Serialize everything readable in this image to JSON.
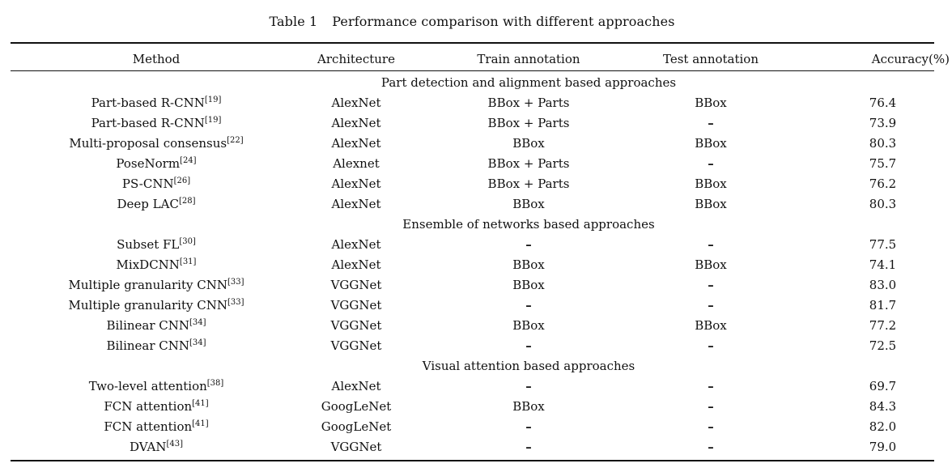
{
  "caption": {
    "label": "Table 1",
    "title": "Performance comparison with different approaches"
  },
  "headers": {
    "method": "Method",
    "architecture": "Architecture",
    "train": "Train annotation",
    "test": "Test annotation",
    "accuracy": "Accuracy(%)"
  },
  "sections": [
    {
      "title": "Part detection and alignment based approaches",
      "rows": [
        {
          "method": "Part-based R-CNN",
          "ref": "[19]",
          "arch": "AlexNet",
          "train": "BBox + Parts",
          "test": "BBox",
          "acc": "76.4"
        },
        {
          "method": "Part-based R-CNN",
          "ref": "[19]",
          "arch": "AlexNet",
          "train": "BBox + Parts",
          "test": "–",
          "acc": "73.9"
        },
        {
          "method": "Multi-proposal consensus",
          "ref": "[22]",
          "arch": "AlexNet",
          "train": "BBox",
          "test": "BBox",
          "acc": "80.3"
        },
        {
          "method": "PoseNorm",
          "ref": "[24]",
          "arch": "Alexnet",
          "train": "BBox + Parts",
          "test": "–",
          "acc": "75.7"
        },
        {
          "method": "PS-CNN",
          "ref": "[26]",
          "arch": "AlexNet",
          "train": "BBox + Parts",
          "test": "BBox",
          "acc": "76.2"
        },
        {
          "method": "Deep LAC",
          "ref": "[28]",
          "arch": "AlexNet",
          "train": "BBox",
          "test": "BBox",
          "acc": "80.3"
        }
      ]
    },
    {
      "title": "Ensemble of networks based approaches",
      "rows": [
        {
          "method": "Subset FL",
          "ref": "[30]",
          "arch": "AlexNet",
          "train": "–",
          "test": "–",
          "acc": "77.5"
        },
        {
          "method": "MixDCNN",
          "ref": "[31]",
          "arch": "AlexNet",
          "train": "BBox",
          "test": "BBox",
          "acc": "74.1"
        },
        {
          "method": "Multiple granularity CNN",
          "ref": "[33]",
          "arch": "VGGNet",
          "train": "BBox",
          "test": "–",
          "acc": "83.0"
        },
        {
          "method": "Multiple granularity CNN",
          "ref": "[33]",
          "arch": "VGGNet",
          "train": "–",
          "test": "–",
          "acc": "81.7"
        },
        {
          "method": "Bilinear CNN",
          "ref": "[34]",
          "arch": "VGGNet",
          "train": "BBox",
          "test": "BBox",
          "acc": "77.2"
        },
        {
          "method": "Bilinear CNN",
          "ref": "[34]",
          "arch": "VGGNet",
          "train": "–",
          "test": "–",
          "acc": "72.5"
        }
      ]
    },
    {
      "title": "Visual attention based approaches",
      "rows": [
        {
          "method": "Two-level attention",
          "ref": "[38]",
          "arch": "AlexNet",
          "train": "–",
          "test": "–",
          "acc": "69.7"
        },
        {
          "method": "FCN attention",
          "ref": "[41]",
          "arch": "GoogLeNet",
          "train": "BBox",
          "test": "–",
          "acc": "84.3"
        },
        {
          "method": "FCN attention",
          "ref": "[41]",
          "arch": "GoogLeNet",
          "train": "–",
          "test": "–",
          "acc": "82.0"
        },
        {
          "method": "DVAN",
          "ref": "[43]",
          "arch": "VGGNet",
          "train": "–",
          "test": "–",
          "acc": "79.0"
        }
      ]
    }
  ]
}
